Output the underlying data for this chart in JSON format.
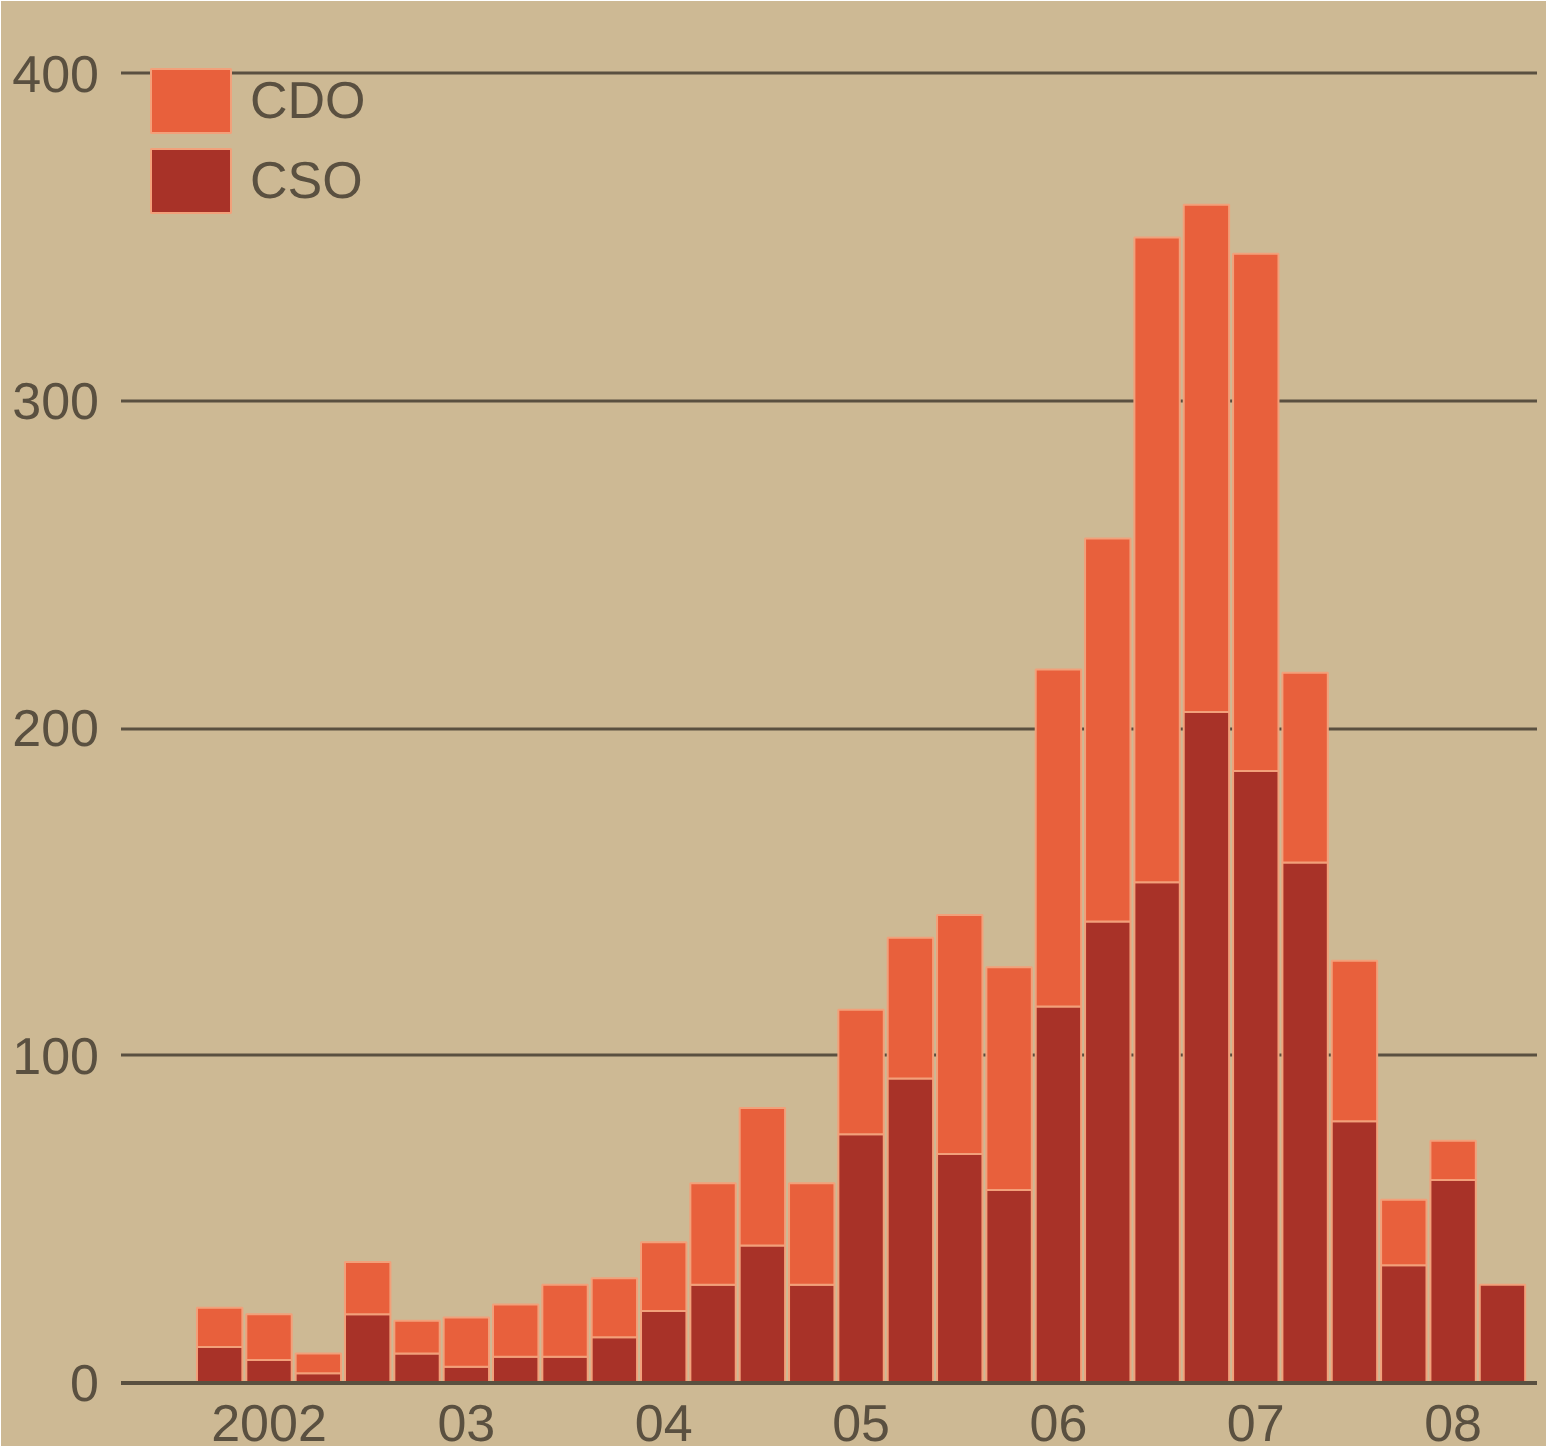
{
  "chart_data": {
    "type": "bar",
    "stacked": true,
    "categories": [
      null,
      "2002",
      null,
      null,
      null,
      "03",
      null,
      null,
      null,
      "04",
      null,
      null,
      null,
      "05",
      null,
      null,
      null,
      "06",
      null,
      null,
      null,
      "07",
      null,
      null,
      null,
      "08",
      null
    ],
    "series": [
      {
        "name": "CSO",
        "color": "#a83228",
        "values": [
          11,
          7,
          3,
          21,
          9,
          5,
          8,
          8,
          14,
          22,
          30,
          42,
          30,
          76,
          93,
          70,
          59,
          115,
          141,
          153,
          205,
          187,
          159,
          80,
          36,
          62,
          30
        ]
      },
      {
        "name": "CDO",
        "color": "#e8603c",
        "values": [
          12,
          14,
          6,
          16,
          10,
          15,
          16,
          22,
          18,
          21,
          31,
          42,
          31,
          38,
          43,
          73,
          68,
          103,
          117,
          197,
          155,
          158,
          58,
          49,
          20,
          12,
          null
        ]
      }
    ],
    "ylim": [
      0,
      410
    ],
    "yticks": [
      0,
      100,
      200,
      300,
      400
    ],
    "grid": "y",
    "legend": "top left"
  }
}
